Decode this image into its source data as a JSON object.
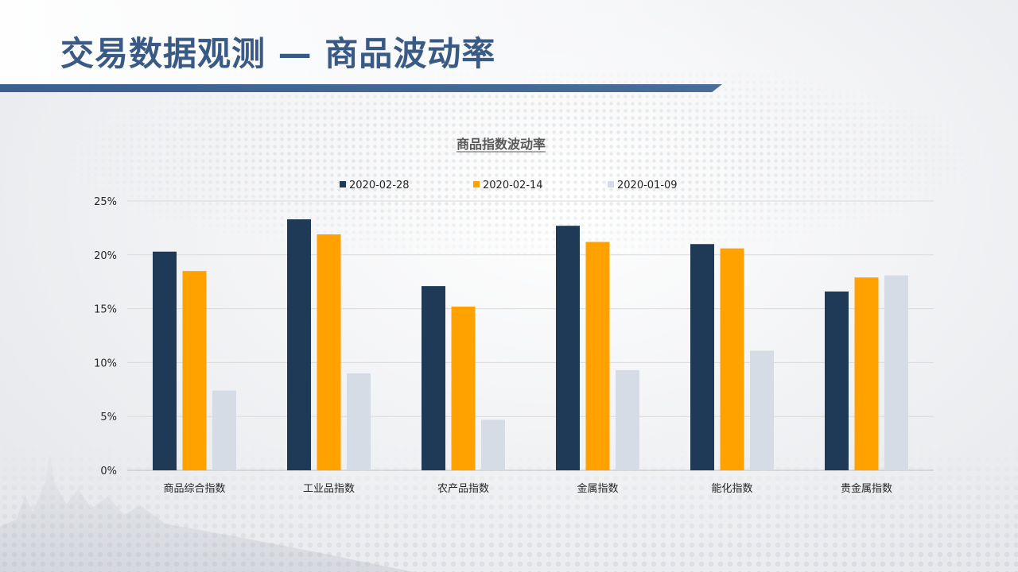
{
  "page": {
    "title": "交易数据观测 — 商品波动率"
  },
  "chart_data": {
    "type": "bar",
    "title": "商品指数波动率",
    "categories": [
      "商品综合指数",
      "工业品指数",
      "农产品指数",
      "金属指数",
      "能化指数",
      "贵金属指数"
    ],
    "series": [
      {
        "name": "2020-02-28",
        "color": "#1f3a56",
        "values": [
          20.3,
          23.3,
          17.1,
          22.7,
          21.0,
          16.6
        ]
      },
      {
        "name": "2020-02-14",
        "color": "#ffa200",
        "values": [
          18.5,
          21.9,
          15.2,
          21.2,
          20.6,
          17.9
        ]
      },
      {
        "name": "2020-01-09",
        "color": "#d6dce5",
        "values": [
          7.4,
          9.0,
          4.7,
          9.3,
          11.1,
          18.1
        ]
      }
    ],
    "yticks": [
      "0%",
      "5%",
      "10%",
      "15%",
      "20%",
      "25%"
    ],
    "ylim": [
      0,
      25
    ],
    "unit": "%",
    "grid": true,
    "legend_position": "top"
  }
}
